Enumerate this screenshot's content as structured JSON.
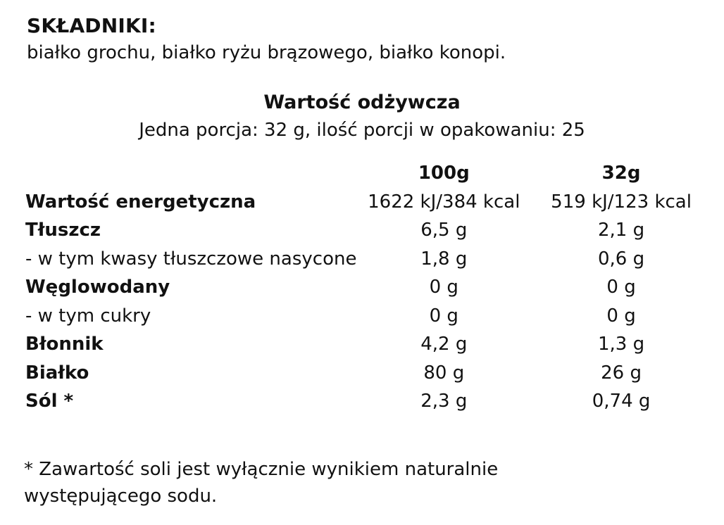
{
  "ingredients": {
    "title": "SKŁADNIKI:",
    "text": "białko grochu, białko ryżu brązowego, białko konopi."
  },
  "nutrition": {
    "title": "Wartość odżywcza",
    "serving_info": "Jedna porcja: 32 g, ilość porcji w opakowaniu: 25",
    "headers": [
      "",
      "100g",
      "32g"
    ],
    "rows": [
      {
        "name": "Wartość energetyczna",
        "bold": true,
        "per100": "1622 kJ/384 kcal",
        "per32": "519 kJ/123 kcal"
      },
      {
        "name": "Tłuszcz",
        "bold": true,
        "per100": "6,5 g",
        "per32": "2,1 g"
      },
      {
        "name": "- w tym kwasy tłuszczowe nasycone",
        "bold": false,
        "per100": "1,8 g",
        "per32": "0,6 g"
      },
      {
        "name": "Węglowodany",
        "bold": true,
        "per100": "0 g",
        "per32": "0 g"
      },
      {
        "name": "- w tym cukry",
        "bold": false,
        "per100": "0 g",
        "per32": "0 g"
      },
      {
        "name": "Błonnik",
        "bold": true,
        "per100": "4,2 g",
        "per32": "1,3 g"
      },
      {
        "name": "Białko",
        "bold": true,
        "per100": "80 g",
        "per32": "26 g"
      },
      {
        "name": "Sól *",
        "bold": true,
        "per100": "2,3 g",
        "per32": "0,74 g"
      }
    ]
  },
  "footnote": {
    "line1": "* Zawartość soli jest wyłącznie wynikiem naturalnie",
    "line2": "występującego sodu."
  }
}
